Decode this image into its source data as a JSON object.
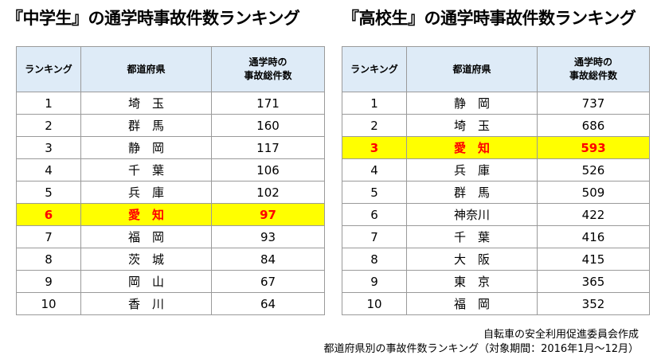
{
  "left": {
    "title": "『中学生』の通学時事故件数ランキング",
    "headers": {
      "rank": "ランキング",
      "pref": "都道府県",
      "count_line1": "通学時の",
      "count_line2": "事故総件数"
    },
    "rows": [
      {
        "rank": "1",
        "pref": "埼　玉",
        "count": "171",
        "highlight": false
      },
      {
        "rank": "2",
        "pref": "群　馬",
        "count": "160",
        "highlight": false
      },
      {
        "rank": "3",
        "pref": "静　岡",
        "count": "117",
        "highlight": false
      },
      {
        "rank": "4",
        "pref": "千　葉",
        "count": "106",
        "highlight": false
      },
      {
        "rank": "5",
        "pref": "兵　庫",
        "count": "102",
        "highlight": false
      },
      {
        "rank": "6",
        "pref": "愛　知",
        "count": "97",
        "highlight": true
      },
      {
        "rank": "7",
        "pref": "福　岡",
        "count": "93",
        "highlight": false
      },
      {
        "rank": "8",
        "pref": "茨　城",
        "count": "84",
        "highlight": false
      },
      {
        "rank": "9",
        "pref": "岡　山",
        "count": "67",
        "highlight": false
      },
      {
        "rank": "10",
        "pref": "香　川",
        "count": "64",
        "highlight": false
      }
    ]
  },
  "right": {
    "title": "『高校生』の通学時事故件数ランキング",
    "headers": {
      "rank": "ランキング",
      "pref": "都道府県",
      "count_line1": "通学時の",
      "count_line2": "事故総件数"
    },
    "rows": [
      {
        "rank": "1",
        "pref": "静　岡",
        "count": "737",
        "highlight": false
      },
      {
        "rank": "2",
        "pref": "埼　玉",
        "count": "686",
        "highlight": false
      },
      {
        "rank": "3",
        "pref": "愛　知",
        "count": "593",
        "highlight": true
      },
      {
        "rank": "4",
        "pref": "兵　庫",
        "count": "526",
        "highlight": false
      },
      {
        "rank": "5",
        "pref": "群　馬",
        "count": "509",
        "highlight": false
      },
      {
        "rank": "6",
        "pref": "神奈川",
        "count": "422",
        "highlight": false
      },
      {
        "rank": "7",
        "pref": "千　葉",
        "count": "416",
        "highlight": false
      },
      {
        "rank": "8",
        "pref": "大　阪",
        "count": "415",
        "highlight": false
      },
      {
        "rank": "9",
        "pref": "東　京",
        "count": "365",
        "highlight": false
      },
      {
        "rank": "10",
        "pref": "福　岡",
        "count": "352",
        "highlight": false
      }
    ]
  },
  "footer": {
    "line1": "自転車の安全利用促進委員会作成",
    "line2": "都道府県別の事故件数ランキング（対象期間：2016年1月～12月）"
  },
  "colors": {
    "header_bg": "#deebf7",
    "highlight_bg": "#ffff00",
    "highlight_text": "#ff0000",
    "border": "#9a9a9a"
  }
}
